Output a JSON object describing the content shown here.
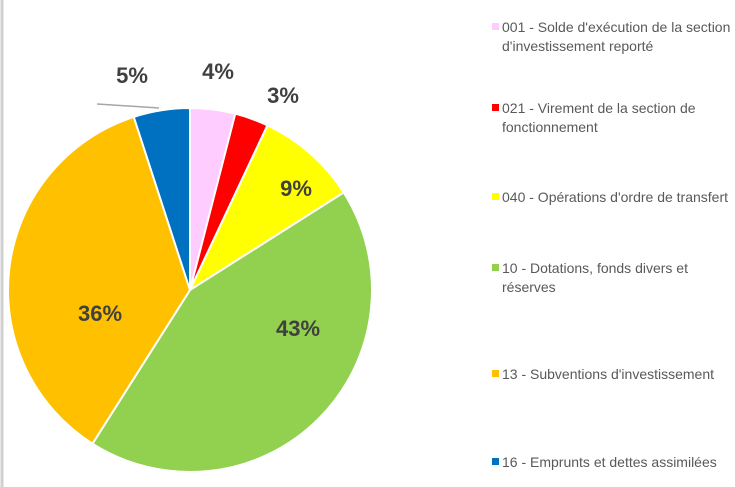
{
  "chart_data": {
    "type": "pie",
    "categories": [
      "001 - Solde d'exécution de la section d'investissement reporté",
      "021 - Virement de la section de fonctionnement",
      "040 - Opérations d'ordre de transfert",
      "10 - Dotations, fonds divers et réserves",
      "13 - Subventions d'investissement",
      "16 - Emprunts et dettes assimilées"
    ],
    "values": [
      4,
      3,
      9,
      43,
      36,
      5
    ],
    "value_labels": [
      "4%",
      "3%",
      "9%",
      "43%",
      "36%",
      "5%"
    ],
    "colors": [
      "#ffccff",
      "#ff0000",
      "#ffff00",
      "#92d050",
      "#ffc000",
      "#0070c0"
    ],
    "legend": "right"
  }
}
